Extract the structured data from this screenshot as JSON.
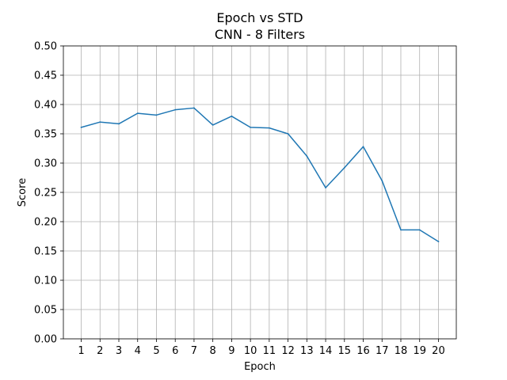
{
  "chart_data": {
    "type": "line",
    "title": "Epoch vs STD",
    "subtitle": "CNN - 8 Filters",
    "xlabel": "Epoch",
    "ylabel": "Score",
    "x": [
      1,
      2,
      3,
      4,
      5,
      6,
      7,
      8,
      9,
      10,
      11,
      12,
      13,
      14,
      15,
      16,
      17,
      18,
      19,
      20
    ],
    "xlim": [
      0.05,
      20.95
    ],
    "ylim": [
      0.0,
      0.5
    ],
    "yticks": [
      0.0,
      0.05,
      0.1,
      0.15,
      0.2,
      0.25,
      0.3,
      0.35,
      0.4,
      0.45,
      0.5
    ],
    "ytick_labels": [
      "0.00",
      "0.05",
      "0.10",
      "0.15",
      "0.20",
      "0.25",
      "0.30",
      "0.35",
      "0.40",
      "0.45",
      "0.50"
    ],
    "grid": true,
    "series": [
      {
        "color": "#1f77b4",
        "values": [
          0.361,
          0.37,
          0.367,
          0.385,
          0.382,
          0.391,
          0.394,
          0.365,
          0.38,
          0.361,
          0.36,
          0.35,
          0.312,
          0.258,
          0.292,
          0.328,
          0.27,
          0.186,
          0.186,
          0.166
        ]
      }
    ]
  }
}
